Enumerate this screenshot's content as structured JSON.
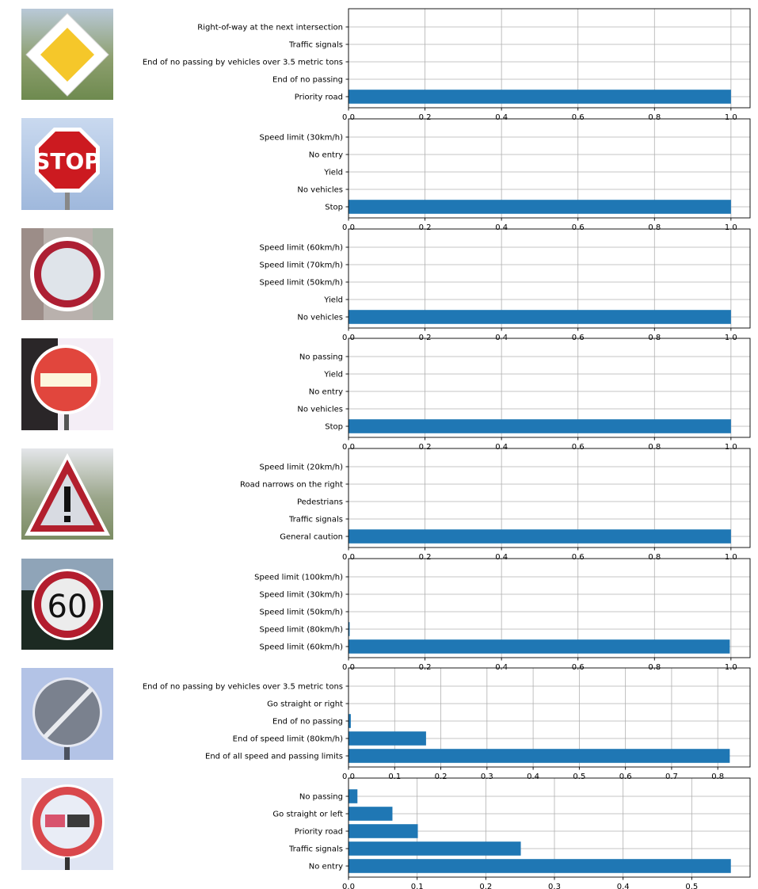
{
  "chart_data": [
    {
      "type": "bar",
      "orientation": "horizontal",
      "sign_image": "priority-road-sign",
      "categories": [
        "Priority road",
        "End of no passing",
        "End of no passing by vehicles over 3.5 metric tons",
        "Traffic signals",
        "Right-of-way at the next intersection"
      ],
      "values": [
        1.0,
        0.0,
        0.0,
        0.0,
        0.0
      ],
      "xlim": [
        0,
        1.05
      ],
      "xticks": [
        0.0,
        0.2,
        0.4,
        0.6,
        0.8,
        1.0
      ],
      "xtick_labels": [
        "0.0",
        "0.2",
        "0.4",
        "0.6",
        "0.8",
        "1.0"
      ],
      "grid": true,
      "bar_color": "#1f77b4"
    },
    {
      "type": "bar",
      "orientation": "horizontal",
      "sign_image": "stop-sign",
      "categories": [
        "Stop",
        "No vehicles",
        "Yield",
        "No entry",
        "Speed limit (30km/h)"
      ],
      "values": [
        1.0,
        0.0,
        0.0,
        0.0,
        0.0
      ],
      "xlim": [
        0,
        1.05
      ],
      "xticks": [
        0.0,
        0.2,
        0.4,
        0.6,
        0.8,
        1.0
      ],
      "xtick_labels": [
        "0.0",
        "0.2",
        "0.4",
        "0.6",
        "0.8",
        "1.0"
      ],
      "grid": true,
      "bar_color": "#1f77b4"
    },
    {
      "type": "bar",
      "orientation": "horizontal",
      "sign_image": "no-vehicles-sign",
      "categories": [
        "No vehicles",
        "Yield",
        "Speed limit (50km/h)",
        "Speed limit (70km/h)",
        "Speed limit (60km/h)"
      ],
      "values": [
        1.0,
        0.0,
        0.0,
        0.0,
        0.0
      ],
      "xlim": [
        0,
        1.05
      ],
      "xticks": [
        0.0,
        0.2,
        0.4,
        0.6,
        0.8,
        1.0
      ],
      "xtick_labels": [
        "0.0",
        "0.2",
        "0.4",
        "0.6",
        "0.8",
        "1.0"
      ],
      "grid": true,
      "bar_color": "#1f77b4"
    },
    {
      "type": "bar",
      "orientation": "horizontal",
      "sign_image": "no-entry-sign",
      "categories": [
        "Stop",
        "No vehicles",
        "No entry",
        "Yield",
        "No passing"
      ],
      "values": [
        1.0,
        0.0,
        0.0,
        0.0,
        0.0
      ],
      "xlim": [
        0,
        1.05
      ],
      "xticks": [
        0.0,
        0.2,
        0.4,
        0.6,
        0.8,
        1.0
      ],
      "xtick_labels": [
        "0.0",
        "0.2",
        "0.4",
        "0.6",
        "0.8",
        "1.0"
      ],
      "grid": true,
      "bar_color": "#1f77b4"
    },
    {
      "type": "bar",
      "orientation": "horizontal",
      "sign_image": "general-caution-sign",
      "categories": [
        "General caution",
        "Traffic signals",
        "Pedestrians",
        "Road narrows on the right",
        "Speed limit (20km/h)"
      ],
      "values": [
        1.0,
        0.0,
        0.0,
        0.0,
        0.0
      ],
      "xlim": [
        0,
        1.05
      ],
      "xticks": [
        0.0,
        0.2,
        0.4,
        0.6,
        0.8,
        1.0
      ],
      "xtick_labels": [
        "0.0",
        "0.2",
        "0.4",
        "0.6",
        "0.8",
        "1.0"
      ],
      "grid": true,
      "bar_color": "#1f77b4"
    },
    {
      "type": "bar",
      "orientation": "horizontal",
      "sign_image": "speed-limit-60-sign",
      "categories": [
        "Speed limit (60km/h)",
        "Speed limit (80km/h)",
        "Speed limit (50km/h)",
        "Speed limit (30km/h)",
        "Speed limit (100km/h)"
      ],
      "values": [
        0.997,
        0.003,
        0.0,
        0.0,
        0.0
      ],
      "xlim": [
        0,
        1.05
      ],
      "xticks": [
        0.0,
        0.2,
        0.4,
        0.6,
        0.8,
        1.0
      ],
      "xtick_labels": [
        "0.0",
        "0.2",
        "0.4",
        "0.6",
        "0.8",
        "1.0"
      ],
      "grid": true,
      "bar_color": "#1f77b4"
    },
    {
      "type": "bar",
      "orientation": "horizontal",
      "sign_image": "end-of-all-limits-sign",
      "categories": [
        "End of all speed and passing limits",
        "End of speed limit (80km/h)",
        "End of no passing",
        "Go straight or right",
        "End of no passing by vehicles over 3.5 metric tons"
      ],
      "values": [
        0.826,
        0.168,
        0.005,
        0.0,
        0.0
      ],
      "xlim": [
        0,
        0.87
      ],
      "xticks": [
        0.0,
        0.1,
        0.2,
        0.3,
        0.4,
        0.5,
        0.6,
        0.7,
        0.8
      ],
      "xtick_labels": [
        "0.0",
        "0.1",
        "0.2",
        "0.3",
        "0.4",
        "0.5",
        "0.6",
        "0.7",
        "0.8"
      ],
      "grid": true,
      "bar_color": "#1f77b4"
    },
    {
      "type": "bar",
      "orientation": "horizontal",
      "sign_image": "no-passing-heavy-vehicles-sign",
      "categories": [
        "No entry",
        "Traffic signals",
        "Priority road",
        "Go straight or left",
        "No passing"
      ],
      "values": [
        0.557,
        0.251,
        0.101,
        0.064,
        0.013
      ],
      "xlim": [
        0,
        0.585
      ],
      "xticks": [
        0.0,
        0.1,
        0.2,
        0.3,
        0.4,
        0.5
      ],
      "xtick_labels": [
        "0.0",
        "0.1",
        "0.2",
        "0.3",
        "0.4",
        "0.5"
      ],
      "grid": true,
      "bar_color": "#1f77b4"
    }
  ]
}
